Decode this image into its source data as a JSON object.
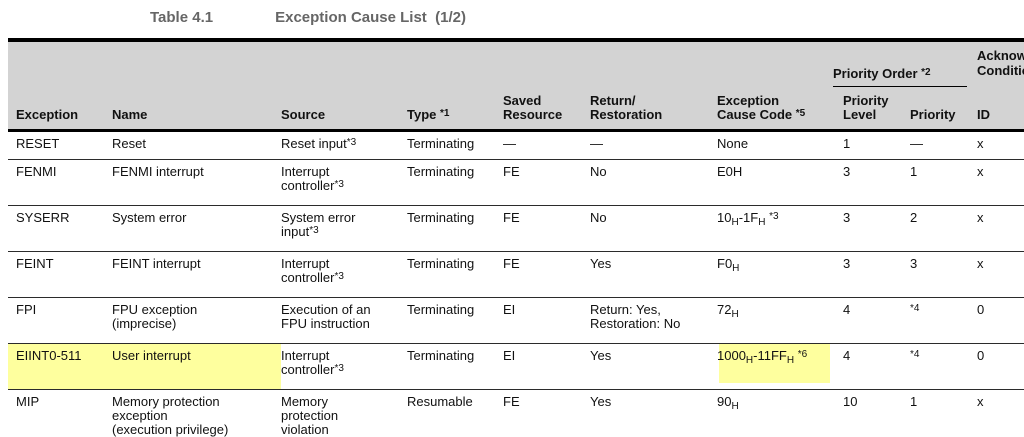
{
  "title": {
    "label": "Table 4.1",
    "text": "Exception Cause List  (1/2)"
  },
  "table": {
    "group_headers": {
      "priority_order": "Priority Order ^*2^",
      "acknowledge": "Acknowledgment\nCondition"
    },
    "columns": [
      "Exception",
      "Name",
      "Source",
      "Type ^*1^",
      "Saved\nResource",
      "Return/\nRestoration",
      "Exception\nCause Code ^*5^",
      "Priority\nLevel",
      "Priority",
      "ID"
    ],
    "rows": [
      {
        "cells": [
          "RESET",
          "Reset",
          "Reset input^*3^",
          "Terminating",
          "—",
          "—",
          "None",
          "1",
          "—",
          "x"
        ],
        "highlighted": false
      },
      {
        "cells": [
          "FENMI",
          "FENMI interrupt",
          "Interrupt\ncontroller^*3^",
          "Terminating",
          "FE",
          "No",
          "E0H",
          "3",
          "1",
          "x"
        ],
        "highlighted": false
      },
      {
        "cells": [
          "SYSERR",
          "System error",
          "System error\ninput^*3^",
          "Terminating",
          "FE",
          "No",
          "10_H_-1F_H_ ^*3^",
          "3",
          "2",
          "x"
        ],
        "highlighted": false
      },
      {
        "cells": [
          "FEINT",
          "FEINT interrupt",
          "Interrupt\ncontroller^*3^",
          "Terminating",
          "FE",
          "Yes",
          "F0_H_",
          "3",
          "3",
          "x"
        ],
        "highlighted": false
      },
      {
        "cells": [
          "FPI",
          "FPU exception\n(imprecise)",
          "Execution of an\nFPU instruction",
          "Terminating",
          "EI",
          "Return: Yes,\nRestoration: No",
          "72_H_",
          "4",
          "^*4^",
          "0"
        ],
        "highlighted": false
      },
      {
        "cells": [
          "EIINT0-511",
          "User interrupt",
          "Interrupt\ncontroller^*3^",
          "Terminating",
          "EI",
          "Yes",
          "1000_H_-11FF_H_ ^*6^",
          "4",
          "^*4^",
          "0"
        ],
        "highlighted": true
      },
      {
        "cells": [
          "MIP",
          "Memory protection\nexception\n(execution privilege)",
          "Memory\nprotection\nviolation",
          "Resumable",
          "FE",
          "Yes",
          "90_H_",
          "10",
          "1",
          "x"
        ],
        "highlighted": false
      }
    ],
    "colors": {
      "header_bg": "#d3d3d3",
      "highlight": "#feff9e",
      "title_text": "#666666"
    }
  }
}
